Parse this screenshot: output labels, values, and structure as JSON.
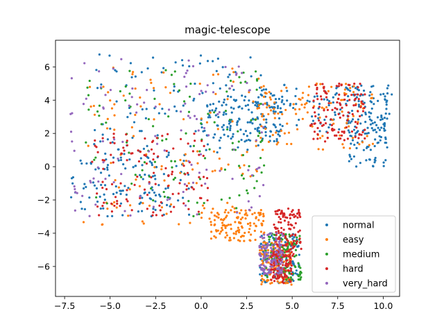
{
  "chart_data": {
    "type": "scatter",
    "title": "magic-telescope",
    "xlabel": "",
    "ylabel": "",
    "xlim": [
      -8.0,
      10.9
    ],
    "ylim": [
      -7.8,
      7.6
    ],
    "xticks": [
      -7.5,
      -5.0,
      -2.5,
      0.0,
      2.5,
      5.0,
      7.5,
      10.0
    ],
    "xtick_labels": [
      "−7.5",
      "−5.0",
      "−2.5",
      "0.0",
      "2.5",
      "5.0",
      "7.5",
      "10.0"
    ],
    "yticks": [
      -6,
      -4,
      -2,
      0,
      2,
      4,
      6
    ],
    "ytick_labels": [
      "−6",
      "−4",
      "−2",
      "0",
      "2",
      "4",
      "6"
    ],
    "grid": false,
    "legend_position": "lower-right",
    "series": [
      {
        "name": "normal",
        "color": "#1f77b4",
        "regions": [
          {
            "x": [
              -7.2,
              -0.5
            ],
            "y": [
              -3.0,
              0.6
            ]
          },
          {
            "x": [
              -6.0,
              3.5
            ],
            "y": [
              0.5,
              6.8
            ]
          },
          {
            "x": [
              0.0,
              4.5
            ],
            "y": [
              1.5,
              4.3
            ]
          },
          {
            "x": [
              3.0,
              10.5
            ],
            "y": [
              2.0,
              5.0
            ]
          },
          {
            "x": [
              8.0,
              10.3
            ],
            "y": [
              0.0,
              5.0
            ]
          },
          {
            "x": [
              3.2,
              5.4
            ],
            "y": [
              -7.0,
              -4.0
            ]
          }
        ]
      },
      {
        "name": "easy",
        "color": "#ff7f0e",
        "regions": [
          {
            "x": [
              -6.5,
              3.5
            ],
            "y": [
              -3.5,
              6.0
            ]
          },
          {
            "x": [
              0.5,
              3.5
            ],
            "y": [
              -4.5,
              -2.5
            ]
          },
          {
            "x": [
              3.0,
              9.5
            ],
            "y": [
              1.0,
              5.0
            ]
          },
          {
            "x": [
              3.2,
              5.0
            ],
            "y": [
              -7.1,
              -4.5
            ]
          }
        ]
      },
      {
        "name": "medium",
        "color": "#2ca02c",
        "regions": [
          {
            "x": [
              -6.5,
              3.5
            ],
            "y": [
              -3.0,
              6.0
            ]
          },
          {
            "x": [
              3.5,
              5.5
            ],
            "y": [
              -6.8,
              -4.0
            ]
          }
        ]
      },
      {
        "name": "hard",
        "color": "#d62728",
        "regions": [
          {
            "x": [
              -6.0,
              0.5
            ],
            "y": [
              -3.0,
              2.0
            ]
          },
          {
            "x": [
              4.0,
              5.5
            ],
            "y": [
              -5.5,
              -2.5
            ]
          },
          {
            "x": [
              6.0,
              9.0
            ],
            "y": [
              1.5,
              5.0
            ]
          },
          {
            "x": [
              3.8,
              5.0
            ],
            "y": [
              -7.0,
              -5.0
            ]
          }
        ]
      },
      {
        "name": "very_hard",
        "color": "#9467bd",
        "regions": [
          {
            "x": [
              -7.2,
              3.5
            ],
            "y": [
              -3.0,
              6.5
            ]
          },
          {
            "x": [
              3.2,
              4.5
            ],
            "y": [
              -6.5,
              -4.0
            ]
          }
        ]
      }
    ]
  }
}
